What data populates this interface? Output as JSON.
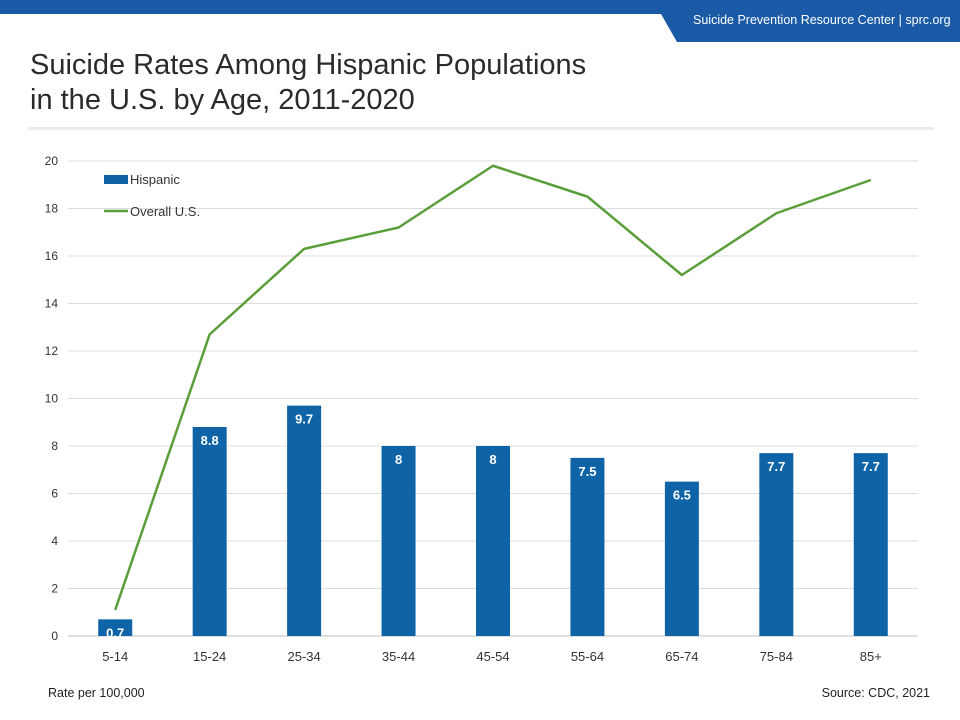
{
  "header": {
    "org_label": "Suicide Prevention Resource Center  |  sprc.org"
  },
  "title_line1": "Suicide Rates Among Hispanic Populations",
  "title_line2": "in the U.S. by Age, 2011-2020",
  "footer": {
    "ylabel_note": "Rate per 100,000",
    "source": "Source: CDC, 2021"
  },
  "colors": {
    "brand_blue": "#1a5aa6",
    "bar_blue": "#0f64a8",
    "line_green": "#5a9e3a"
  },
  "chart_data": {
    "type": "bar",
    "categories": [
      "5-14",
      "15-24",
      "25-34",
      "35-44",
      "45-54",
      "55-64",
      "65-74",
      "75-84",
      "85+"
    ],
    "series": [
      {
        "name": "Hispanic",
        "type": "bar",
        "values": [
          0.7,
          8.8,
          9.7,
          8,
          8,
          7.5,
          6.5,
          7.7,
          7.7
        ],
        "data_labels": [
          "0.7",
          "8.8",
          "9.7",
          "8",
          "8",
          "7.5",
          "6.5",
          "7.7",
          "7.7"
        ]
      },
      {
        "name": "Overall U.S.",
        "type": "line",
        "values": [
          1.1,
          12.7,
          16.3,
          17.2,
          19.8,
          18.5,
          15.2,
          17.8,
          19.2
        ]
      }
    ],
    "yticks": [
      0,
      2,
      4,
      6,
      8,
      10,
      12,
      14,
      16,
      18,
      20
    ],
    "ylim": [
      0,
      20
    ],
    "grid": true,
    "legend_position": "top-left"
  }
}
